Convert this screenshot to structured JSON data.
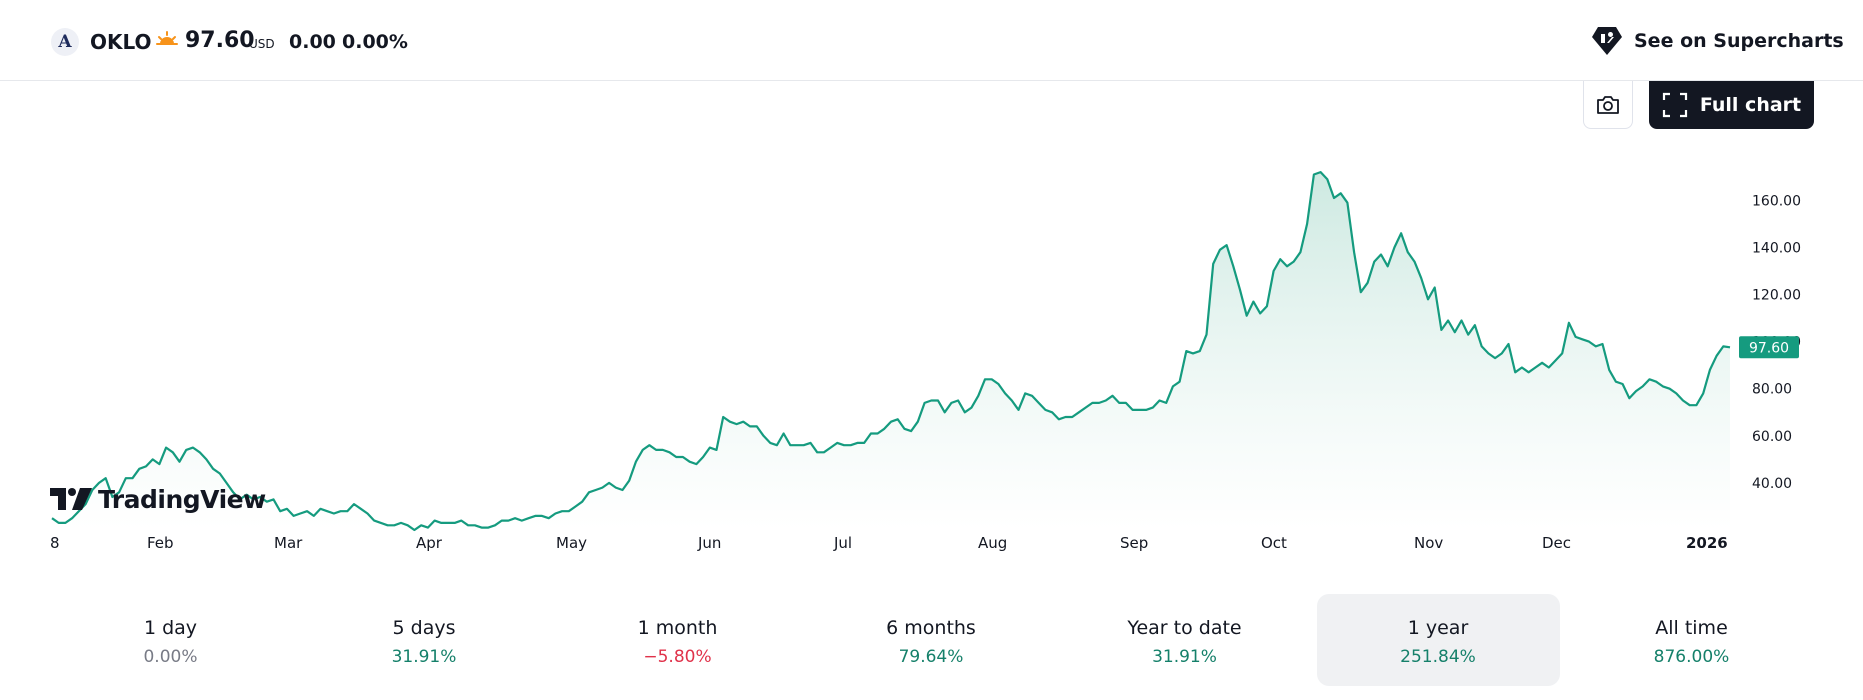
{
  "header": {
    "logo_letter": "A",
    "ticker": "OKLO",
    "market_icon": "sun-icon",
    "price": "97.60",
    "currency": "USD",
    "change": "0.00",
    "change_percent": "0.00%",
    "supercharts_icon": "tradingview-icon",
    "supercharts_label": "See on Supercharts"
  },
  "toolbar": {
    "camera_icon": "camera-icon",
    "full_chart_icon": "fullscreen-icon",
    "full_chart_label": "Full chart"
  },
  "branding": {
    "watermark": "TradingView"
  },
  "colors": {
    "line": "#159b7f",
    "fill_top": "#cde9e1",
    "positive": "#15806a",
    "negative": "#e0324a",
    "neutral": "#787b86",
    "price_badge": "#159b7f"
  },
  "chart_data": {
    "type": "area",
    "symbol": "OKLO",
    "x_ticks": [
      "8",
      "Feb",
      "Mar",
      "Apr",
      "May",
      "Jun",
      "Jul",
      "Aug",
      "Sep",
      "Oct",
      "Nov",
      "Dec",
      "2026"
    ],
    "y_ticks": [
      "40.00",
      "60.00",
      "80.00",
      "100.00",
      "120.00",
      "140.00",
      "160.00"
    ],
    "ylim": [
      20,
      178
    ],
    "last_price_label": "97.60",
    "values": [
      25,
      23,
      23,
      25,
      28,
      31,
      37,
      40,
      42,
      34,
      36,
      42,
      42,
      46,
      47,
      50,
      48,
      55,
      53,
      49,
      54,
      55,
      53,
      50,
      46,
      44,
      40,
      36,
      33,
      35,
      33,
      34,
      32,
      33,
      28,
      29,
      26,
      27,
      28,
      26,
      29,
      28,
      27,
      28,
      28,
      31,
      29,
      27,
      24,
      23,
      22,
      22,
      23,
      22,
      20,
      22,
      21,
      24,
      23,
      23,
      23,
      24,
      22,
      22,
      21,
      21,
      22,
      24,
      24,
      25,
      24,
      25,
      26,
      26,
      25,
      27,
      28,
      28,
      30,
      32,
      36,
      37,
      38,
      40,
      38,
      37,
      41,
      49,
      54,
      56,
      54,
      54,
      53,
      51,
      51,
      49,
      48,
      51,
      55,
      54,
      68,
      66,
      65,
      66,
      64,
      64,
      60,
      57,
      56,
      61,
      56,
      56,
      56,
      57,
      53,
      53,
      55,
      57,
      56,
      56,
      57,
      57,
      61,
      61,
      63,
      66,
      67,
      63,
      62,
      66,
      74,
      75,
      75,
      70,
      74,
      75,
      70,
      72,
      77,
      84,
      84,
      82,
      78,
      75,
      71,
      78,
      77,
      74,
      71,
      70,
      67,
      68,
      68,
      70,
      72,
      74,
      74,
      75,
      77,
      74,
      74,
      71,
      71,
      71,
      72,
      75,
      74,
      81,
      83,
      96,
      95,
      96,
      103,
      133,
      139,
      141,
      132,
      122,
      111,
      117,
      112,
      115,
      130,
      135,
      132,
      134,
      138,
      150,
      171,
      172,
      169,
      161,
      163,
      159,
      138,
      121,
      125,
      134,
      137,
      132,
      140,
      146,
      138,
      134,
      127,
      118,
      123,
      105,
      109,
      104,
      109,
      103,
      107,
      98,
      95,
      93,
      95,
      99,
      87,
      89,
      87,
      89,
      91,
      89,
      92,
      95,
      108,
      102,
      101,
      100,
      98,
      99,
      88,
      83,
      82,
      76,
      79,
      81,
      84,
      83,
      81,
      80,
      78,
      75,
      73,
      73,
      78,
      88,
      94,
      98,
      97.6
    ]
  },
  "periods": [
    {
      "label": "1 day",
      "value": "0.00%",
      "tone": "neutral",
      "active": false
    },
    {
      "label": "5 days",
      "value": "31.91%",
      "tone": "positive",
      "active": false
    },
    {
      "label": "1 month",
      "value": "−5.80%",
      "tone": "negative",
      "active": false
    },
    {
      "label": "6 months",
      "value": "79.64%",
      "tone": "positive",
      "active": false
    },
    {
      "label": "Year to date",
      "value": "31.91%",
      "tone": "positive",
      "active": false
    },
    {
      "label": "1 year",
      "value": "251.84%",
      "tone": "positive",
      "active": true
    },
    {
      "label": "All time",
      "value": "876.00%",
      "tone": "positive",
      "active": false
    }
  ]
}
